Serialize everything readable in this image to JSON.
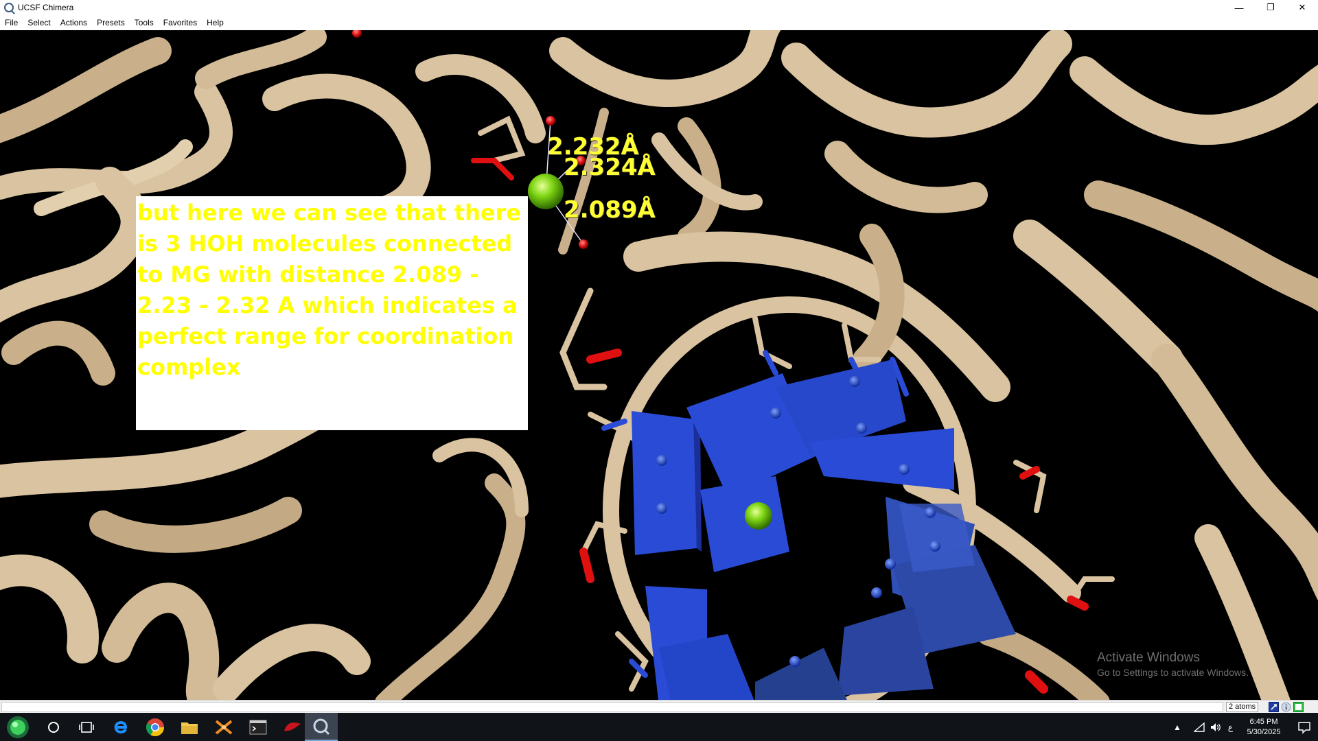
{
  "window": {
    "title": "UCSF Chimera",
    "controls": {
      "minimize": "—",
      "restore": "❐",
      "close": "✕"
    }
  },
  "menubar": {
    "items": [
      "File",
      "Select",
      "Actions",
      "Presets",
      "Tools",
      "Favorites",
      "Help"
    ]
  },
  "viewport": {
    "distance_labels": [
      "2.232Å",
      "2.324Å",
      "2.089Å"
    ],
    "note": "but here we can see that there is 3 HOH molecules connected to MG with distance 2.089 - 2.23 - 2.32 A which indicates a perfect range for coordination complex",
    "watermark": {
      "title": "Activate Windows",
      "subtitle": "Go to Settings to activate Windows."
    },
    "colors": {
      "ribbon": "#d9c3a0",
      "nucleotide": "#2a4bd6",
      "magnesium": "#7fd614",
      "oxygen": "#e01010",
      "label": "#ffff33"
    }
  },
  "statusbar": {
    "message": "",
    "selection_count": "2 atoms"
  },
  "taskbar": {
    "apps": [
      "start",
      "search-cortana",
      "task-view",
      "edge",
      "chrome",
      "file-explorer",
      "pymol",
      "terminal",
      "red-app",
      "chimera"
    ],
    "clock": {
      "time": "6:45 PM",
      "date": "5/30/2025"
    },
    "input_indicator": "ع"
  }
}
